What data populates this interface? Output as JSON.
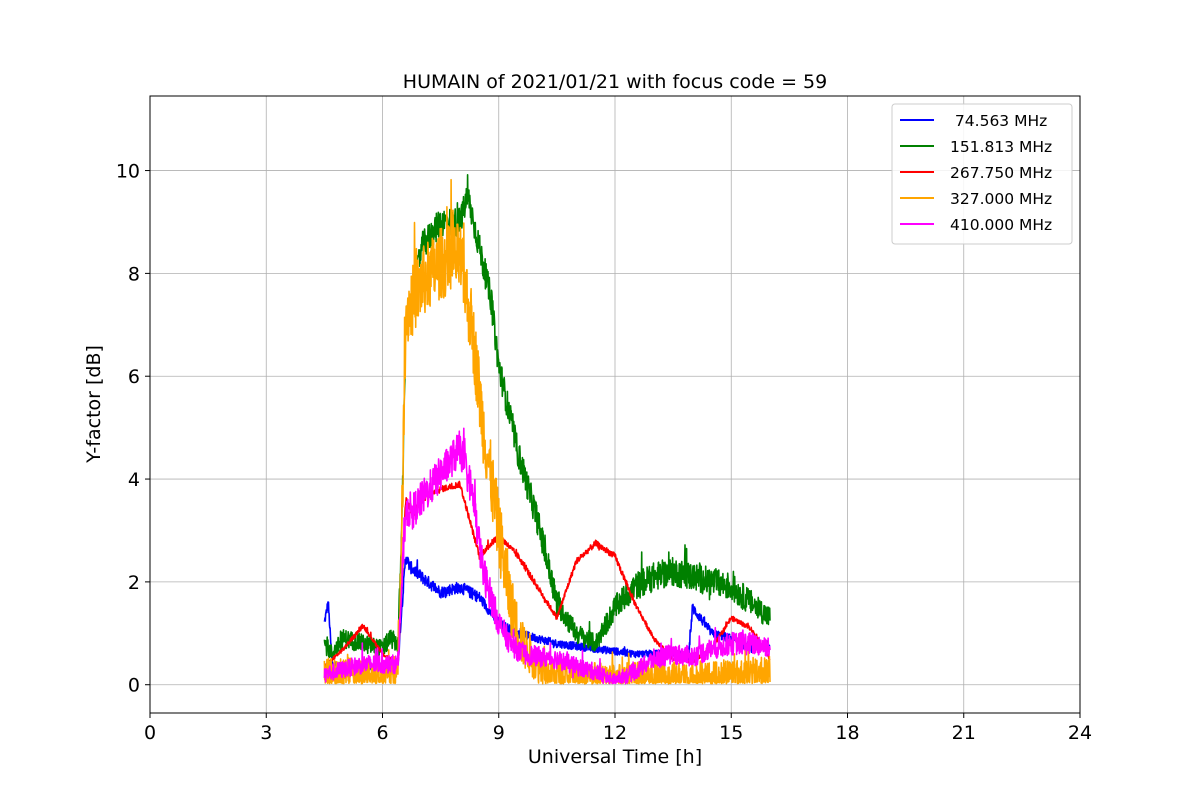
{
  "chart_data": {
    "type": "line",
    "title": "HUMAIN of 2021/01/21 with focus code = 59",
    "xlabel": "Universal Time [h]",
    "ylabel": "Y-factor [dB]",
    "xlim": [
      0,
      24
    ],
    "ylim": [
      -0.55,
      11.45
    ],
    "xticks": [
      0,
      3,
      6,
      9,
      12,
      15,
      18,
      21,
      24
    ],
    "yticks": [
      0,
      2,
      4,
      6,
      8,
      10
    ],
    "grid": true,
    "legend_position": "top-right",
    "series": [
      {
        "name": " 74.563 MHz",
        "color": "#0000ff",
        "noise": 0.12,
        "x": [
          4.5,
          4.6,
          4.7,
          5.0,
          5.5,
          6.0,
          6.4,
          6.5,
          6.6,
          6.7,
          7.0,
          7.5,
          8.0,
          8.5,
          9.0,
          9.5,
          10.0,
          10.5,
          11.0,
          11.5,
          12.0,
          12.5,
          13.0,
          13.5,
          13.9,
          14.0,
          14.5,
          15.0,
          15.5,
          16.0
        ],
        "y": [
          1.2,
          1.6,
          0.4,
          0.35,
          0.35,
          0.35,
          0.4,
          1.5,
          2.5,
          2.3,
          2.1,
          1.8,
          1.9,
          1.7,
          1.2,
          1.0,
          0.9,
          0.8,
          0.75,
          0.7,
          0.65,
          0.6,
          0.6,
          0.6,
          0.55,
          1.5,
          1.0,
          0.9,
          0.7,
          0.75
        ]
      },
      {
        "name": "151.813 MHz",
        "color": "#008000",
        "noise": 0.28,
        "x": [
          4.5,
          4.7,
          5.0,
          5.5,
          6.0,
          6.2,
          6.4,
          6.5,
          6.6,
          6.8,
          7.0,
          7.5,
          8.0,
          8.2,
          8.5,
          8.8,
          9.0,
          9.5,
          10.0,
          10.5,
          11.0,
          11.5,
          12.0,
          12.5,
          13.0,
          13.5,
          14.0,
          14.5,
          15.0,
          15.5,
          16.0
        ],
        "y": [
          0.8,
          0.6,
          0.9,
          0.8,
          0.7,
          0.9,
          0.8,
          3.0,
          7.0,
          7.5,
          8.5,
          9.0,
          9.0,
          9.5,
          8.5,
          7.5,
          6.2,
          4.5,
          3.2,
          1.6,
          1.0,
          0.8,
          1.5,
          1.9,
          2.1,
          2.2,
          2.1,
          2.0,
          1.9,
          1.6,
          1.3
        ]
      },
      {
        "name": "267.750 MHz",
        "color": "#ff0000",
        "noise": 0.06,
        "x": [
          4.5,
          5.0,
          5.5,
          6.0,
          6.4,
          6.5,
          6.6,
          6.8,
          7.0,
          7.5,
          8.0,
          8.5,
          9.0,
          9.5,
          10.0,
          10.5,
          11.0,
          11.5,
          12.0,
          12.5,
          13.0,
          13.5,
          14.0,
          14.5,
          15.0,
          15.5,
          16.0
        ],
        "y": [
          0.35,
          0.7,
          1.15,
          0.6,
          0.4,
          2.0,
          3.6,
          3.3,
          3.6,
          3.8,
          3.9,
          2.5,
          2.9,
          2.5,
          1.9,
          1.3,
          2.4,
          2.75,
          2.5,
          1.6,
          0.9,
          0.5,
          0.45,
          0.7,
          1.3,
          1.1,
          0.5
        ]
      },
      {
        "name": "327.000 MHz",
        "color": "#ffa500",
        "noise": 0.7,
        "x": [
          4.5,
          5.0,
          5.5,
          6.0,
          6.4,
          6.5,
          6.6,
          6.8,
          7.0,
          7.5,
          8.0,
          8.3,
          8.6,
          9.0,
          9.3,
          9.6,
          10.0,
          10.5,
          11.0,
          11.5,
          12.0,
          12.5,
          13.0,
          13.5,
          14.0,
          14.5,
          15.0,
          15.5,
          16.0
        ],
        "y": [
          0.2,
          0.2,
          0.2,
          0.2,
          0.25,
          3.0,
          7.2,
          7.5,
          7.8,
          8.2,
          8.3,
          7.0,
          5.0,
          3.0,
          1.6,
          0.8,
          0.4,
          0.2,
          0.15,
          0.12,
          0.12,
          0.15,
          0.15,
          0.15,
          0.15,
          0.2,
          0.2,
          0.2,
          0.25
        ]
      },
      {
        "name": "410.000 MHz",
        "color": "#ff00ff",
        "noise": 0.35,
        "x": [
          4.5,
          5.0,
          5.5,
          6.0,
          6.4,
          6.5,
          6.6,
          6.8,
          7.0,
          7.5,
          8.0,
          8.3,
          8.6,
          9.0,
          9.3,
          9.6,
          10.0,
          10.5,
          11.0,
          11.5,
          12.0,
          12.5,
          13.0,
          13.5,
          14.0,
          14.5,
          15.0,
          15.5,
          16.0
        ],
        "y": [
          0.2,
          0.3,
          0.4,
          0.4,
          0.4,
          2.0,
          3.4,
          3.4,
          3.6,
          4.1,
          4.6,
          3.8,
          2.2,
          1.2,
          0.8,
          0.6,
          0.55,
          0.5,
          0.35,
          0.25,
          0.08,
          0.25,
          0.5,
          0.6,
          0.55,
          0.7,
          0.8,
          0.8,
          0.75
        ]
      }
    ]
  }
}
